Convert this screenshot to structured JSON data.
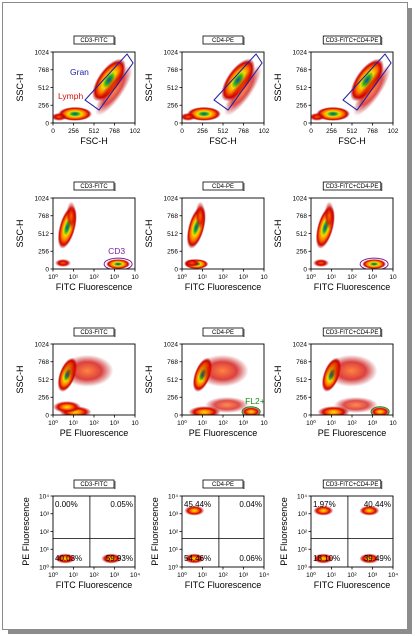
{
  "chart_data": [
    {
      "id": "r0c0",
      "type": "scatter",
      "title": "CD3-FITC",
      "xlabel": "FSC-H",
      "ylabel": "SSC-H",
      "scale": "linear",
      "xlim": [
        0,
        1024
      ],
      "ylim": [
        0,
        1024
      ],
      "xticks": [
        "0",
        "256",
        "512",
        "768",
        "102"
      ],
      "yticks": [
        "0",
        "256",
        "512",
        "768",
        "1024"
      ],
      "populations": [
        {
          "name": "Lymph",
          "x": 300,
          "y": 160
        },
        {
          "name": "Gran",
          "x": 700,
          "y": 620
        }
      ],
      "gates": [
        {
          "label": "Gran",
          "color": "#1c1ca6"
        },
        {
          "label": "Lymph",
          "color": "#d01010"
        }
      ]
    },
    {
      "id": "r0c1",
      "type": "scatter",
      "title": "CD4-PE",
      "xlabel": "FSC-H",
      "ylabel": "SSC-H",
      "scale": "linear",
      "xlim": [
        0,
        1024
      ],
      "ylim": [
        0,
        1024
      ],
      "xticks": [
        "0",
        "256",
        "512",
        "768",
        "102"
      ],
      "yticks": [
        "0",
        "256",
        "512",
        "768",
        "1024"
      ],
      "populations": [
        {
          "x": 300,
          "y": 160
        },
        {
          "x": 700,
          "y": 620
        }
      ],
      "gates": [
        {
          "label": "",
          "color": "#1c1ca6"
        }
      ]
    },
    {
      "id": "r0c2",
      "type": "scatter",
      "title": "CD3-FITC+CD4-PE",
      "xlabel": "FSC-H",
      "ylabel": "SSC-H",
      "scale": "linear",
      "xlim": [
        0,
        1024
      ],
      "ylim": [
        0,
        1024
      ],
      "xticks": [
        "0",
        "256",
        "512",
        "768",
        "102"
      ],
      "yticks": [
        "0",
        "256",
        "512",
        "768",
        "1024"
      ],
      "populations": [
        {
          "x": 300,
          "y": 160
        },
        {
          "x": 700,
          "y": 620
        }
      ],
      "gates": [
        {
          "label": "",
          "color": "#1c1ca6"
        }
      ]
    },
    {
      "id": "r1c0",
      "type": "scatter",
      "title": "CD3-FITC",
      "xlabel": "FITC Fluorescence",
      "ylabel": "SSC-H",
      "scale": "log-x",
      "xlim": [
        1,
        10000
      ],
      "ylim": [
        0,
        1024
      ],
      "xticks": [
        "10⁰",
        "10¹",
        "10²",
        "10³",
        "10"
      ],
      "yticks": [
        "0",
        "256",
        "512",
        "768",
        "1024"
      ],
      "populations": [
        {
          "x": 5,
          "y": 600
        },
        {
          "x": 1500,
          "y": 100
        }
      ],
      "gates": [
        {
          "label": "CD3",
          "color": "#7a1fa2"
        }
      ]
    },
    {
      "id": "r1c1",
      "type": "scatter",
      "title": "CD4-PE",
      "xlabel": "FITC Fluorescence",
      "ylabel": "SSC-H",
      "scale": "log-x",
      "xlim": [
        1,
        10000
      ],
      "ylim": [
        0,
        1024
      ],
      "xticks": [
        "10⁰",
        "10¹",
        "10²",
        "10³",
        "10"
      ],
      "yticks": [
        "0",
        "256",
        "512",
        "768",
        "1024"
      ],
      "populations": [
        {
          "x": 5,
          "y": 600
        },
        {
          "x": 5,
          "y": 100
        }
      ],
      "gates": []
    },
    {
      "id": "r1c2",
      "type": "scatter",
      "title": "CD3-FITC+CD4-PE",
      "xlabel": "FITC Fluorescence",
      "ylabel": "SSC-H",
      "scale": "log-x",
      "xlim": [
        1,
        10000
      ],
      "ylim": [
        0,
        1024
      ],
      "xticks": [
        "10⁰",
        "10¹",
        "10²",
        "10³",
        "10"
      ],
      "yticks": [
        "0",
        "256",
        "512",
        "768",
        "1024"
      ],
      "populations": [
        {
          "x": 5,
          "y": 600
        },
        {
          "x": 1200,
          "y": 100
        }
      ],
      "gates": [
        {
          "label": "",
          "color": "#7a1fa2"
        }
      ]
    },
    {
      "id": "r2c0",
      "type": "scatter",
      "title": "CD3-FITC",
      "xlabel": "PE Fluorescence",
      "ylabel": "SSC-H",
      "scale": "log-x",
      "xlim": [
        1,
        10000
      ],
      "ylim": [
        0,
        1024
      ],
      "xticks": [
        "10⁰",
        "10¹",
        "10²",
        "10³",
        "10"
      ],
      "yticks": [
        "0",
        "256",
        "512",
        "768",
        "1024"
      ],
      "populations": [
        {
          "x": 5,
          "y": 580
        },
        {
          "x": 8,
          "y": 100
        }
      ],
      "gates": []
    },
    {
      "id": "r2c1",
      "type": "scatter",
      "title": "CD4-PE",
      "xlabel": "PE Fluorescence",
      "ylabel": "SSC-H",
      "scale": "log-x",
      "xlim": [
        1,
        10000
      ],
      "ylim": [
        0,
        1024
      ],
      "xticks": [
        "10⁰",
        "10¹",
        "10²",
        "10³",
        "10"
      ],
      "yticks": [
        "0",
        "256",
        "512",
        "768",
        "1024"
      ],
      "populations": [
        {
          "x": 10,
          "y": 580
        },
        {
          "x": 8,
          "y": 100
        },
        {
          "x": 1500,
          "y": 90
        }
      ],
      "gates": [
        {
          "label": "FL2+",
          "color": "#1a8a1a"
        }
      ]
    },
    {
      "id": "r2c2",
      "type": "scatter",
      "title": "CD3-FITC+CD4-PE",
      "xlabel": "PE Fluorescence",
      "ylabel": "SSC-H",
      "scale": "log-x",
      "xlim": [
        1,
        10000
      ],
      "ylim": [
        0,
        1024
      ],
      "xticks": [
        "10⁰",
        "10¹",
        "10²",
        "10³",
        "10"
      ],
      "yticks": [
        "0",
        "256",
        "512",
        "768",
        "1024"
      ],
      "populations": [
        {
          "x": 10,
          "y": 580
        },
        {
          "x": 8,
          "y": 100
        },
        {
          "x": 1500,
          "y": 90
        }
      ],
      "gates": [
        {
          "label": "",
          "color": "#1a8a1a"
        }
      ]
    },
    {
      "id": "r3c0",
      "type": "scatter",
      "title": "CD3-FITC",
      "xlabel": "FITC Fluorescence",
      "ylabel": "PE Fluorescence",
      "scale": "log-log",
      "xlim": [
        1,
        10000
      ],
      "ylim": [
        1,
        10000
      ],
      "xticks": [
        "10⁰",
        "10¹",
        "10²",
        "10³",
        "10⁴"
      ],
      "yticks": [
        "10⁰",
        "10¹",
        "10²",
        "10³",
        "10⁴"
      ],
      "quadrants": {
        "UL": "0.00%",
        "UR": "0.05%",
        "LL": "40.03%",
        "LR": "59.93%"
      },
      "populations": [
        {
          "x": 4,
          "y": 3
        },
        {
          "x": 700,
          "y": 3
        }
      ]
    },
    {
      "id": "r3c1",
      "type": "scatter",
      "title": "CD4-PE",
      "xlabel": "FITC Fluorescence",
      "ylabel": "PE Fluorescence",
      "scale": "log-log",
      "xlim": [
        1,
        10000
      ],
      "ylim": [
        1,
        10000
      ],
      "xticks": [
        "10⁰",
        "10¹",
        "10²",
        "10³",
        "10⁴"
      ],
      "yticks": [
        "10⁰",
        "10¹",
        "10²",
        "10³",
        "10⁴"
      ],
      "quadrants": {
        "UL": "45.44%",
        "UR": "0.04%",
        "LL": "54.46%",
        "LR": "0.06%"
      },
      "populations": [
        {
          "x": 4,
          "y": 1500
        },
        {
          "x": 4,
          "y": 3
        }
      ]
    },
    {
      "id": "r3c2",
      "type": "scatter",
      "title": "CD3-FITC+CD4-PE",
      "xlabel": "FITC Fluorescence",
      "ylabel": "PE Fluorescence",
      "scale": "log-log",
      "xlim": [
        1,
        10000
      ],
      "ylim": [
        1,
        10000
      ],
      "xticks": [
        "10⁰",
        "10¹",
        "10²",
        "10³",
        "10⁴"
      ],
      "yticks": [
        "10⁰",
        "10¹",
        "10²",
        "10³",
        "10⁴"
      ],
      "quadrants": {
        "UL": "1.97%",
        "UR": "40.44%",
        "LL": "18.10%",
        "LR": "39.49%"
      },
      "populations": [
        {
          "x": 4,
          "y": 1500
        },
        {
          "x": 700,
          "y": 1500
        },
        {
          "x": 4,
          "y": 3
        },
        {
          "x": 700,
          "y": 3
        }
      ]
    }
  ],
  "colors": {
    "density_high": "#1e40c8",
    "density_mid": "#f0d000",
    "density_low": "#c80000",
    "density_edge": "#ff6a00"
  }
}
